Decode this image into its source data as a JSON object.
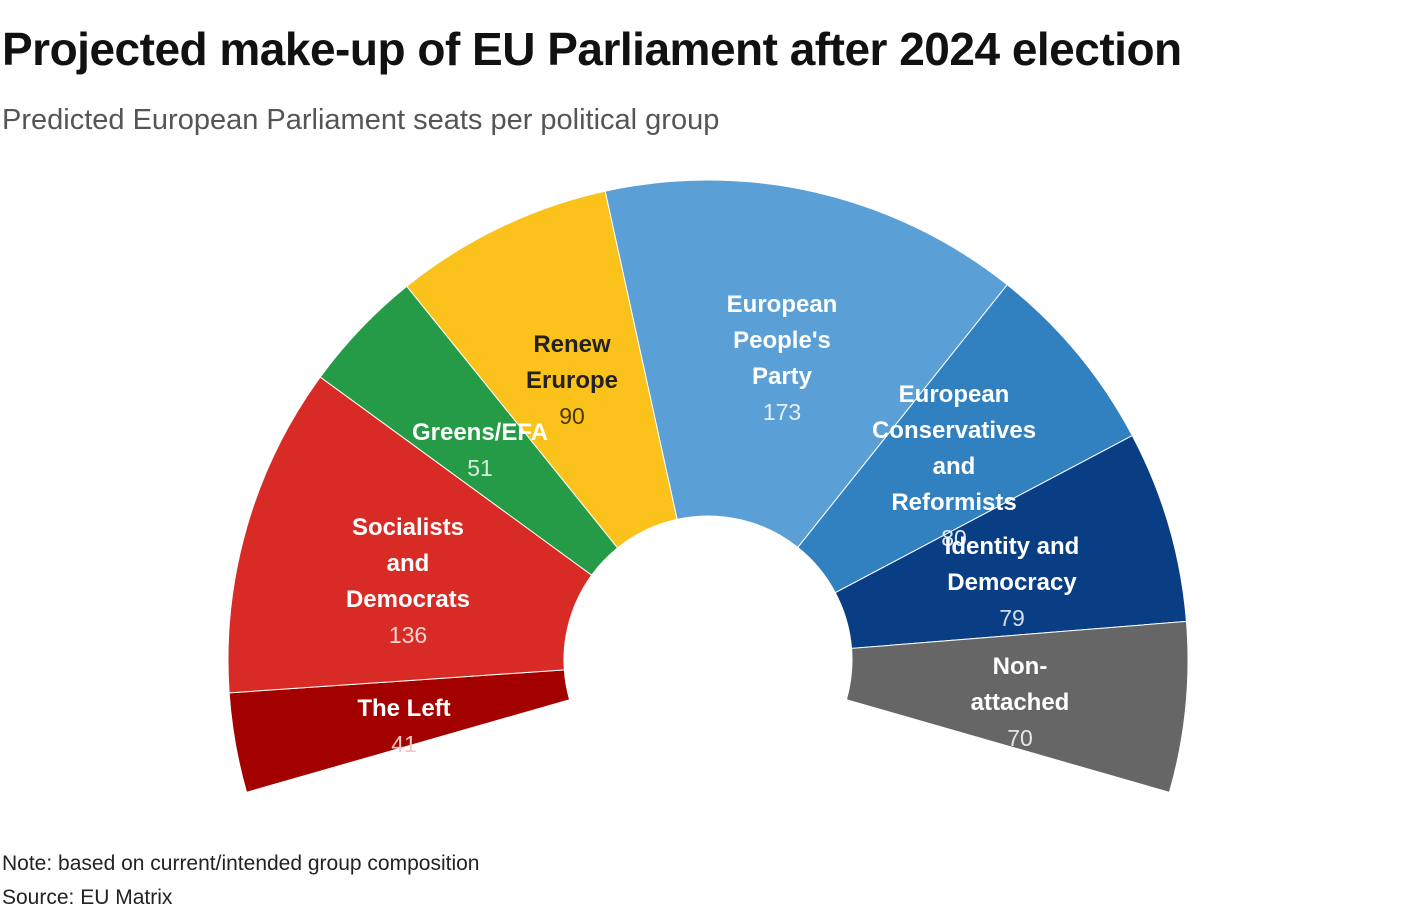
{
  "header": {
    "title": "Projected make-up of EU Parliament after 2024 election",
    "subtitle": "Predicted European Parliament seats per political group"
  },
  "footer": {
    "note": "Note: based on current/intended group composition",
    "source": "Source: EU Matrix"
  },
  "chart_data": {
    "type": "pie",
    "variant": "parliament-semicircle",
    "title": "Projected make-up of EU Parliament after 2024 election",
    "subtitle": "Predicted European Parliament seats per political group",
    "unit": "seats",
    "series": [
      {
        "name": "The Left",
        "label_lines": [
          "The Left"
        ],
        "value": 41,
        "color": "#a30000",
        "label_color": "#ffffff",
        "value_color": "#f2c8c8"
      },
      {
        "name": "Socialists and Democrats",
        "label_lines": [
          "Socialists",
          "and",
          "Democrats"
        ],
        "value": 136,
        "color": "#d82b25",
        "label_color": "#ffffff",
        "value_color": "#f7d6d4"
      },
      {
        "name": "Greens/EFA",
        "label_lines": [
          "Greens/EFA"
        ],
        "value": 51,
        "color": "#259b48",
        "label_color": "#ffffff",
        "value_color": "#d4eedb"
      },
      {
        "name": "Renew Erurope",
        "label_lines": [
          "Renew",
          "Erurope"
        ],
        "value": 90,
        "color": "#fbc21b",
        "label_color": "#222222",
        "value_color": "#4a3a00"
      },
      {
        "name": "European People's Party",
        "label_lines": [
          "European",
          "People's",
          "Party"
        ],
        "value": 173,
        "color": "#5a9fd6",
        "label_color": "#ffffff",
        "value_color": "#e3effa"
      },
      {
        "name": "European Conservatives and Reformists",
        "label_lines": [
          "European",
          "Conservatives",
          "and",
          "Reformists"
        ],
        "value": 80,
        "color": "#3180bf",
        "label_color": "#ffffff",
        "value_color": "#dbe9f6"
      },
      {
        "name": "Identity and Democracy",
        "label_lines": [
          "Identity and",
          "Democracy"
        ],
        "value": 79,
        "color": "#0a3e84",
        "label_color": "#ffffff",
        "value_color": "#d3ddee"
      },
      {
        "name": "Non-attached",
        "label_lines": [
          "Non-",
          "attached"
        ],
        "value": 70,
        "color": "#666666",
        "label_color": "#ffffff",
        "value_color": "#e6e6e6"
      }
    ]
  }
}
